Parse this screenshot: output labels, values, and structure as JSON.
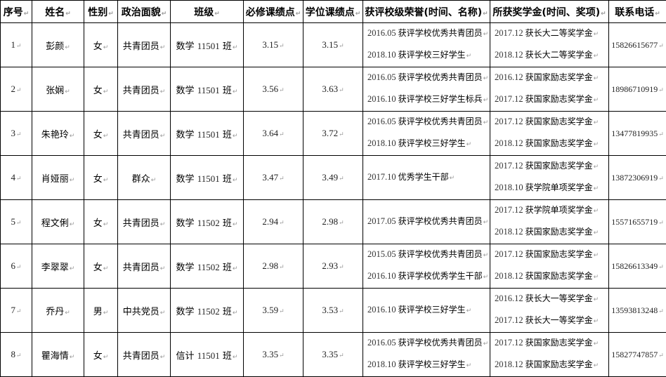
{
  "headers": [
    "序号",
    "姓名",
    "性别",
    "政治面貌",
    "班级",
    "必修课绩点",
    "学位课绩点",
    "获评校级荣誉(时间、名称)",
    "所获奖学金(时间、奖项)",
    "联系电话"
  ],
  "rows": [
    {
      "no": "1",
      "name": "彭颜",
      "gender": "女",
      "political": "共青团员",
      "class_major": "数学",
      "class_no": "11501",
      "class_suffix": "班",
      "required_gpa": "3.15",
      "degree_gpa": "3.15",
      "honors": [
        {
          "date": "2016.05",
          "title": "获评学校优秀共青团员"
        },
        {
          "date": "2018.10",
          "title": "获评学校三好学生"
        }
      ],
      "scholarships": [
        {
          "date": "2017.12",
          "title": "获长大二等奖学金"
        },
        {
          "date": "2018.12",
          "title": "获长大二等奖学金"
        }
      ],
      "phone": "15826615677"
    },
    {
      "no": "2",
      "name": "张娴",
      "gender": "女",
      "political": "共青团员",
      "class_major": "数学",
      "class_no": "11501",
      "class_suffix": "班",
      "required_gpa": "3.56",
      "degree_gpa": "3.63",
      "honors": [
        {
          "date": "2016.05",
          "title": "获评学校优秀共青团员"
        },
        {
          "date": "2016.10",
          "title": "获评学校三好学生标兵"
        }
      ],
      "scholarships": [
        {
          "date": "2016.12",
          "title": "获国家励志奖学金"
        },
        {
          "date": "2017.12",
          "title": "获国家励志奖学金"
        }
      ],
      "phone": "18986710919"
    },
    {
      "no": "3",
      "name": "朱艳玲",
      "gender": "女",
      "political": "共青团员",
      "class_major": "数学",
      "class_no": "11501",
      "class_suffix": "班",
      "required_gpa": "3.64",
      "degree_gpa": "3.72",
      "honors": [
        {
          "date": "2016.05",
          "title": "获评学校优秀共青团员"
        },
        {
          "date": "2018.10",
          "title": "获评学校三好学生"
        }
      ],
      "scholarships": [
        {
          "date": "2017.12",
          "title": "获国家励志奖学金"
        },
        {
          "date": "2018.12",
          "title": "获国家励志奖学金"
        }
      ],
      "phone": "13477819935"
    },
    {
      "no": "4",
      "name": "肖娅丽",
      "gender": "女",
      "political": "群众",
      "class_major": "数学",
      "class_no": "11501",
      "class_suffix": "班",
      "required_gpa": "3.47",
      "degree_gpa": "3.49",
      "honors": [
        {
          "date": "2017.10",
          "title": "优秀学生干部"
        }
      ],
      "scholarships": [
        {
          "date": "2017.12",
          "title": "获国家励志奖学金"
        },
        {
          "date": "2018.10",
          "title": "获学院单项奖学金"
        }
      ],
      "phone": "13872306919"
    },
    {
      "no": "5",
      "name": "程文俐",
      "gender": "女",
      "political": "共青团员",
      "class_major": "数学",
      "class_no": "11502",
      "class_suffix": "班",
      "required_gpa": "2.94",
      "degree_gpa": "2.98",
      "honors": [
        {
          "date": "2017.05",
          "title": "获评学校优秀共青团员"
        }
      ],
      "scholarships": [
        {
          "date": "2017.12",
          "title": "获学院单项奖学金"
        },
        {
          "date": "2018.12",
          "title": "获国家励志奖学金"
        }
      ],
      "phone": "15571655719"
    },
    {
      "no": "6",
      "name": "李翠翠",
      "gender": "女",
      "political": "共青团员",
      "class_major": "数学",
      "class_no": "11502",
      "class_suffix": "班",
      "required_gpa": "2.98",
      "degree_gpa": "2.93",
      "honors": [
        {
          "date": "2015.05",
          "title": "获评学校优秀共青团员"
        },
        {
          "date": "2016.10",
          "title": "获评学校优秀学生干部"
        }
      ],
      "scholarships": [
        {
          "date": "2017.12",
          "title": "获国家励志奖学金"
        },
        {
          "date": "2018.12",
          "title": "获国家励志奖学金"
        }
      ],
      "phone": "15826613349"
    },
    {
      "no": "7",
      "name": "乔丹",
      "gender": "男",
      "political": "中共党员",
      "class_major": "数学",
      "class_no": "11502",
      "class_suffix": "班",
      "required_gpa": "3.59",
      "degree_gpa": "3.53",
      "honors": [
        {
          "date": "2016.10",
          "title": "获评学校三好学生"
        }
      ],
      "scholarships": [
        {
          "date": "2016.12",
          "title": "获长大一等奖学金"
        },
        {
          "date": "2017.12",
          "title": "获长大一等奖学金"
        }
      ],
      "phone": "13593813248"
    },
    {
      "no": "8",
      "name": "瞿海情",
      "gender": "女",
      "political": "共青团员",
      "class_major": "信计",
      "class_no": "11501",
      "class_suffix": "班",
      "required_gpa": "3.35",
      "degree_gpa": "3.35",
      "honors": [
        {
          "date": "2016.05",
          "title": "获评学校优秀共青团员"
        },
        {
          "date": "2018.10",
          "title": "获评学校三好学生"
        }
      ],
      "scholarships": [
        {
          "date": "2017.12",
          "title": "获国家励志奖学金"
        },
        {
          "date": "2018.12",
          "title": "获国家励志奖学金"
        }
      ],
      "phone": "15827747857"
    }
  ]
}
